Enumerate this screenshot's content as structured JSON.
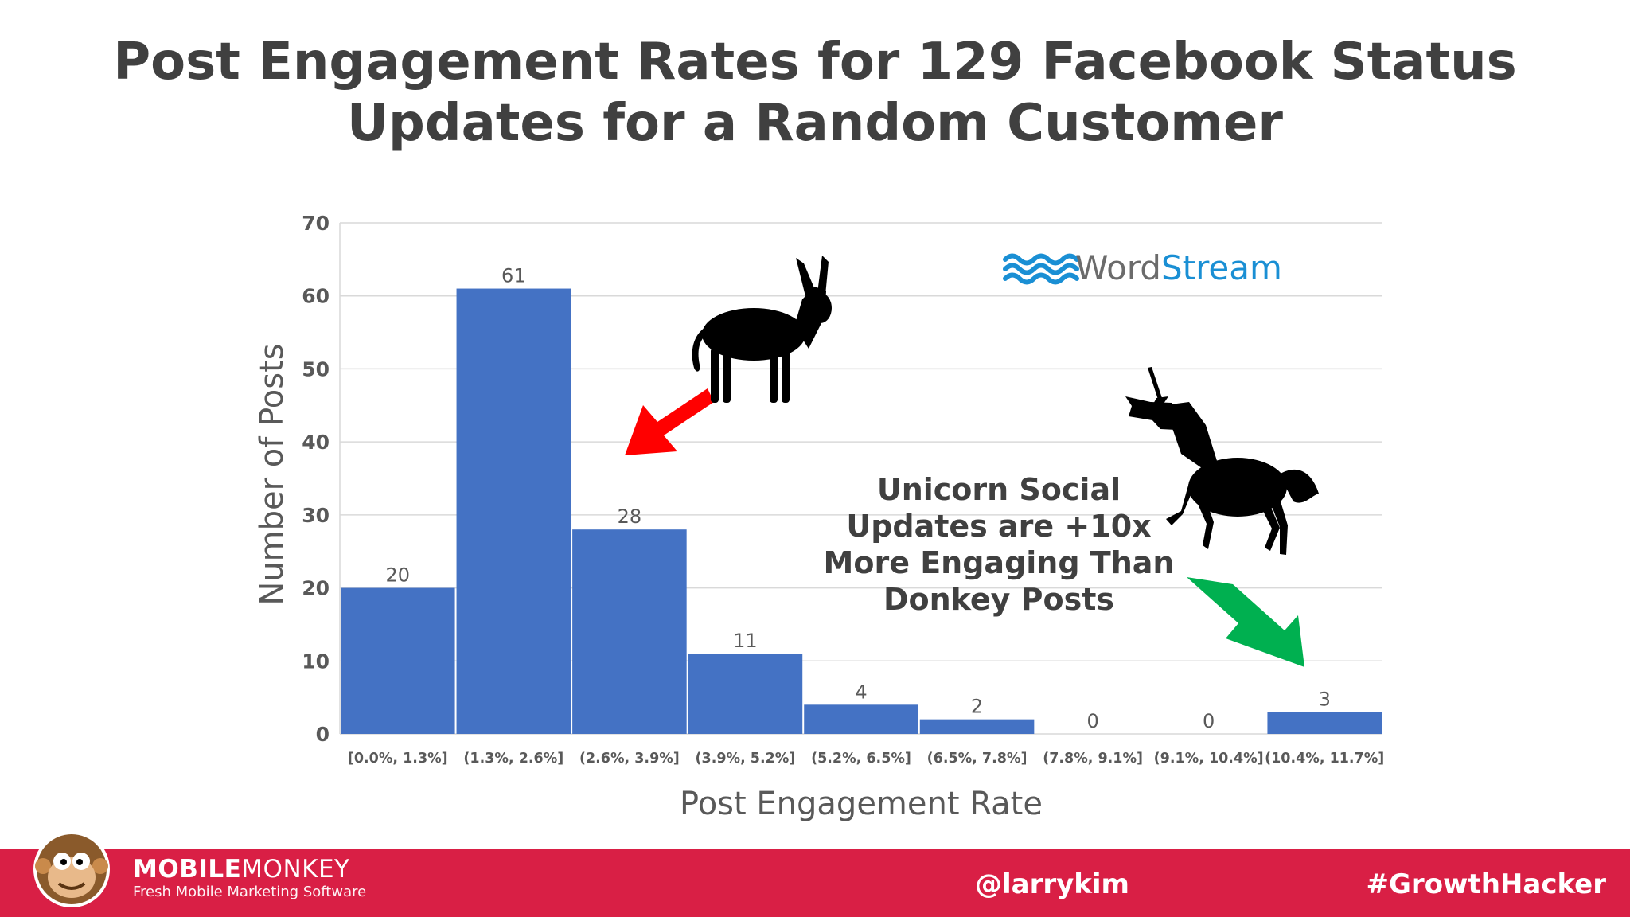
{
  "title": {
    "line1": "Post Engagement Rates for 129 Facebook Status",
    "line2": "Updates for a Random Customer"
  },
  "chart_data": {
    "type": "bar",
    "categories": [
      "[0.0%, 1.3%]",
      "(1.3%, 2.6%]",
      "(2.6%, 3.9%]",
      "(3.9%, 5.2%]",
      "(5.2%, 6.5%]",
      "(6.5%, 7.8%]",
      "(7.8%, 9.1%]",
      "(9.1%, 10.4%]",
      "(10.4%, 11.7%]"
    ],
    "values": [
      20,
      61,
      28,
      11,
      4,
      2,
      0,
      0,
      3
    ],
    "xlabel": "Post Engagement Rate",
    "ylabel": "Number of Posts",
    "ylim": [
      0,
      70
    ],
    "yticks": [
      "0",
      "10",
      "20",
      "30",
      "40",
      "50",
      "60",
      "70"
    ],
    "grid": true,
    "bar_color": "#4472c4"
  },
  "logo": {
    "word1": "Word",
    "word2": "Stream",
    "color_dark": "#6b6b6b",
    "color_blue": "#1a8fd4"
  },
  "annotation": {
    "line1": "Unicorn Social",
    "line2": "Updates are +10x",
    "line3": "More Engaging Than",
    "line4": "Donkey Posts"
  },
  "arrows": {
    "red": "#ff0000",
    "green": "#00b050"
  },
  "icons": [
    "donkey-icon",
    "unicorn-icon",
    "monkey-mascot-icon"
  ],
  "footer": {
    "brand_bold": "MOBILE",
    "brand_light": "MONKEY",
    "tagline": "Fresh Mobile Marketing Software",
    "handle": "@larrykim",
    "hashtag": "#GrowthHacker",
    "background": "#d91f45"
  }
}
